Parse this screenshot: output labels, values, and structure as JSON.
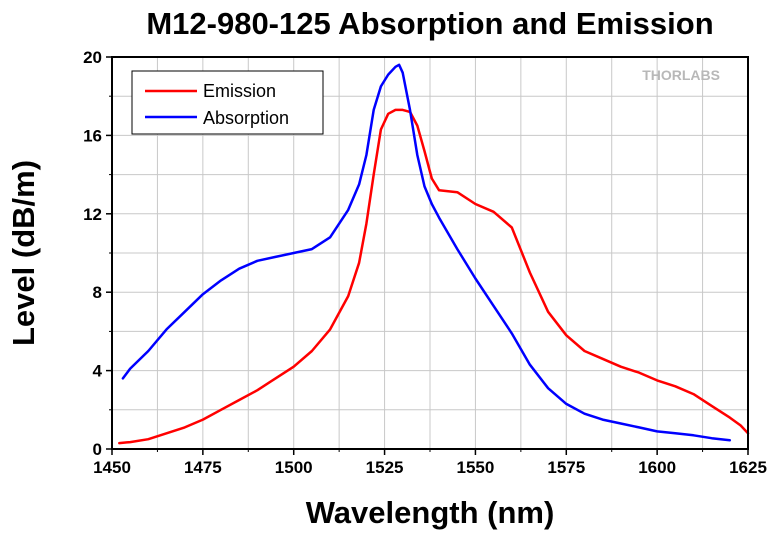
{
  "chart_data": {
    "type": "line",
    "title": "M12-980-125 Absorption and Emission",
    "xlabel": "Wavelength (nm)",
    "ylabel": "Level (dB/m)",
    "xlim": [
      1450,
      1625
    ],
    "ylim": [
      0,
      20
    ],
    "xticks": [
      1450,
      1475,
      1500,
      1525,
      1550,
      1575,
      1600,
      1625
    ],
    "yticks": [
      0,
      4,
      8,
      12,
      16,
      20
    ],
    "grid": true,
    "legend_position": "top-left",
    "logo": "THORLABS",
    "series": [
      {
        "name": "Emission",
        "color": "#ff0000",
        "x": [
          1452,
          1455,
          1460,
          1465,
          1470,
          1475,
          1480,
          1485,
          1490,
          1495,
          1500,
          1505,
          1510,
          1515,
          1518,
          1520,
          1522,
          1524,
          1526,
          1528,
          1530,
          1532,
          1534,
          1536,
          1538,
          1540,
          1545,
          1550,
          1555,
          1560,
          1565,
          1570,
          1575,
          1580,
          1585,
          1590,
          1595,
          1600,
          1605,
          1610,
          1615,
          1620,
          1623,
          1625
        ],
        "y": [
          0.3,
          0.35,
          0.5,
          0.8,
          1.1,
          1.5,
          2.0,
          2.5,
          3.0,
          3.6,
          4.2,
          5.0,
          6.1,
          7.8,
          9.5,
          11.5,
          14.0,
          16.3,
          17.1,
          17.3,
          17.3,
          17.2,
          16.5,
          15.2,
          13.8,
          13.2,
          13.1,
          12.5,
          12.1,
          11.3,
          9.0,
          7.0,
          5.8,
          5.0,
          4.6,
          4.2,
          3.9,
          3.5,
          3.2,
          2.8,
          2.2,
          1.6,
          1.2,
          0.8
        ]
      },
      {
        "name": "Absorption",
        "color": "#0000ff",
        "x": [
          1453,
          1455,
          1460,
          1465,
          1470,
          1475,
          1480,
          1485,
          1490,
          1495,
          1500,
          1505,
          1510,
          1515,
          1518,
          1520,
          1522,
          1524,
          1526,
          1528,
          1529,
          1530,
          1532,
          1534,
          1536,
          1538,
          1540,
          1545,
          1550,
          1555,
          1560,
          1565,
          1570,
          1575,
          1580,
          1585,
          1590,
          1595,
          1600,
          1605,
          1610,
          1615,
          1620
        ],
        "y": [
          3.6,
          4.1,
          5.0,
          6.1,
          7.0,
          7.9,
          8.6,
          9.2,
          9.6,
          9.8,
          10.0,
          10.2,
          10.8,
          12.2,
          13.5,
          15.0,
          17.3,
          18.5,
          19.1,
          19.5,
          19.6,
          19.2,
          17.3,
          15.0,
          13.4,
          12.5,
          11.8,
          10.2,
          8.7,
          7.3,
          5.9,
          4.3,
          3.1,
          2.3,
          1.8,
          1.5,
          1.3,
          1.1,
          0.9,
          0.8,
          0.7,
          0.55,
          0.45
        ]
      }
    ]
  }
}
